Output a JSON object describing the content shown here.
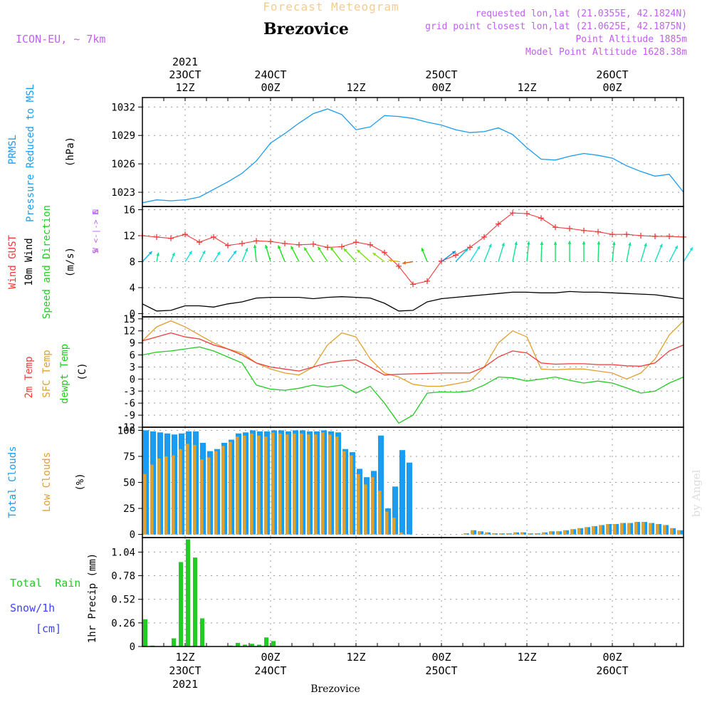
{
  "header": {
    "title": "Brezovice",
    "subtitle": "Forecast Meteogram",
    "model": "ICON-EU, ~ 7km",
    "requested": "requested lon,lat (21.0355E, 42.1824N)",
    "gridpoint": "grid point closest lon,lat (21.0625E, 42.1875N)",
    "altitude": "Point Altitude 1885m",
    "model_altitude": "Model Point Altitude 1628.38m",
    "footer": "Brezovice",
    "watermark": "by Angel"
  },
  "colors": {
    "pressure": "#1a9cf0",
    "gust": "#ee3b3b",
    "wind": "#000000",
    "t2m": "#ee3b3b",
    "sfc": "#e0a030",
    "dewpt": "#22cc22",
    "total_clouds": "#1a9cf0",
    "low_clouds": "#e0a030",
    "rain": "#22cc22",
    "snow": "#4040ff",
    "meta": "#c060f0",
    "grid": "#999999"
  },
  "time_axis": {
    "top_year": "2021",
    "top": [
      {
        "t": 12,
        "l1": "23OCT",
        "l2": "12Z"
      },
      {
        "t": 24,
        "l1": "24OCT",
        "l2": "00Z"
      },
      {
        "t": 36,
        "l1": "",
        "l2": "12Z"
      },
      {
        "t": 48,
        "l1": "25OCT",
        "l2": "00Z"
      },
      {
        "t": 60,
        "l1": "",
        "l2": "12Z"
      },
      {
        "t": 72,
        "l1": "26OCT",
        "l2": "00Z"
      }
    ],
    "bottom": [
      {
        "t": 12,
        "l1": "12Z",
        "l2": "23OCT",
        "l3": "2021"
      },
      {
        "t": 24,
        "l1": "00Z",
        "l2": "24OCT",
        "l3": ""
      },
      {
        "t": 36,
        "l1": "12Z",
        "l2": "",
        "l3": ""
      },
      {
        "t": 48,
        "l1": "00Z",
        "l2": "25OCT",
        "l3": ""
      },
      {
        "t": 60,
        "l1": "12Z",
        "l2": "",
        "l3": ""
      },
      {
        "t": 72,
        "l1": "00Z",
        "l2": "26OCT",
        "l3": ""
      }
    ]
  },
  "panel_labels": {
    "pressure": [
      "PRMSL",
      "Pressure Reduced to MSL"
    ],
    "pressure_unit": "(hPa)",
    "gust": "Wind GUST",
    "wind": "10m Wind",
    "winddir": "Speed and Direction",
    "wind_unit": "(m/s)",
    "compass": [
      "N",
      "^",
      "|",
      "W <-|-> E",
      "|",
      "v",
      "S"
    ],
    "t2m": "2m Temp",
    "sfc": "SFC Temp",
    "dewpt": "dewpt Temp",
    "temp_unit": "(C)",
    "total_clouds": "Total Clouds",
    "low_clouds": "Low Clouds",
    "cloud_unit": "(%)",
    "rain": "Total  Rain",
    "snow": "Snow/1h",
    "snow_unit": "[cm]",
    "precip_unit": "1hr Precip (mm)"
  },
  "chart_data": [
    {
      "type": "line",
      "name": "pressure",
      "x_start_hour": 6,
      "x_end_hour": 82,
      "yticks": [
        1023,
        1026,
        1029,
        1032
      ],
      "ylim": [
        1021.5,
        1033
      ],
      "x": [
        6,
        8,
        10,
        12,
        14,
        16,
        18,
        20,
        22,
        24,
        26,
        28,
        30,
        32,
        34,
        36,
        38,
        40,
        42,
        44,
        46,
        48,
        50,
        52,
        54,
        56,
        58,
        60,
        62,
        64,
        66,
        68,
        70,
        72,
        74,
        76,
        78,
        80,
        82
      ],
      "values": [
        1021.9,
        1022.2,
        1022.1,
        1022.2,
        1022.5,
        1023.3,
        1024.1,
        1025,
        1026.3,
        1028.2,
        1029.2,
        1030.3,
        1031.3,
        1031.8,
        1031.2,
        1029.6,
        1029.9,
        1031.1,
        1031,
        1030.8,
        1030.4,
        1030.1,
        1029.6,
        1029.3,
        1029.4,
        1029.8,
        1029.1,
        1027.7,
        1026.5,
        1026.4,
        1026.8,
        1027.1,
        1026.9,
        1026.6,
        1025.8,
        1025.2,
        1024.7,
        1024.9,
        1023
      ],
      "ylabel": "(hPa)"
    },
    {
      "type": "line",
      "name": "wind",
      "x_start_hour": 6,
      "x_end_hour": 82,
      "yticks": [
        0,
        4,
        8,
        12,
        16
      ],
      "ylim": [
        -0.5,
        16.5
      ],
      "x": [
        6,
        8,
        10,
        12,
        14,
        16,
        18,
        20,
        22,
        24,
        26,
        28,
        30,
        32,
        34,
        36,
        38,
        40,
        42,
        44,
        46,
        48,
        50,
        52,
        54,
        56,
        58,
        60,
        62,
        64,
        66,
        68,
        70,
        72,
        74,
        76,
        78,
        80,
        82
      ],
      "gust": [
        12,
        11.8,
        11.6,
        12.2,
        11,
        11.8,
        10.5,
        10.8,
        11.2,
        11.1,
        10.8,
        10.6,
        10.7,
        10.2,
        10.3,
        11,
        10.6,
        9.4,
        7.3,
        4.5,
        5,
        8.1,
        9,
        10.2,
        11.8,
        13.8,
        15.5,
        15.4,
        14.7,
        13.3,
        13.1,
        12.8,
        12.6,
        12.2,
        12.2,
        12,
        11.9,
        11.9,
        11.8
      ],
      "speed": [
        1.5,
        0.4,
        0.5,
        1.2,
        1.2,
        1,
        1.5,
        1.8,
        2.4,
        2.5,
        2.5,
        2.5,
        2.3,
        2.5,
        2.6,
        2.5,
        2.4,
        1.6,
        0.4,
        0.5,
        1.8,
        2.3,
        2.5,
        2.7,
        2.9,
        3.1,
        3.3,
        3.3,
        3.2,
        3.2,
        3.4,
        3.3,
        3.3,
        3.2,
        3.1,
        3,
        2.9,
        2.6,
        2.3
      ],
      "dir_deg": [
        220,
        190,
        200,
        210,
        205,
        210,
        215,
        200,
        175,
        165,
        160,
        155,
        150,
        150,
        145,
        140,
        135,
        130,
        100,
        80,
        160,
        230,
        220,
        210,
        200,
        195,
        190,
        185,
        182,
        180,
        180,
        180,
        182,
        185,
        190,
        195,
        200,
        205,
        210
      ],
      "ylabel": "(m/s)"
    },
    {
      "type": "line",
      "name": "temperature",
      "x_start_hour": 6,
      "x_end_hour": 82,
      "yticks": [
        -12,
        -9,
        -6,
        -3,
        0,
        3,
        6,
        9,
        12,
        15
      ],
      "ylim": [
        -12,
        15.5
      ],
      "x": [
        6,
        8,
        10,
        12,
        14,
        16,
        18,
        20,
        22,
        24,
        26,
        28,
        30,
        32,
        34,
        36,
        38,
        40,
        42,
        44,
        46,
        48,
        50,
        52,
        54,
        56,
        58,
        60,
        62,
        64,
        66,
        68,
        70,
        72,
        74,
        76,
        78,
        80,
        82
      ],
      "t2m": [
        9.5,
        10.5,
        11.5,
        10.5,
        10,
        8.5,
        7.5,
        6,
        4,
        3,
        2.5,
        2,
        3,
        4,
        4.5,
        4.8,
        3,
        1,
        1.2,
        1.3,
        1.4,
        1.5,
        1.5,
        1.5,
        3,
        5.5,
        7,
        6.5,
        4,
        3.7,
        3.8,
        3.8,
        3.6,
        3.6,
        3.3,
        3.2,
        4,
        7,
        8.5
      ],
      "sfc": [
        9.5,
        13,
        14.5,
        13,
        11,
        9,
        7.5,
        6.5,
        4,
        2.5,
        1.5,
        1,
        3,
        8.5,
        11.5,
        10.5,
        5,
        1.5,
        0.5,
        -1.3,
        -1.8,
        -1.8,
        -1.2,
        -0.5,
        3,
        9,
        12,
        10.5,
        2.5,
        2.3,
        2.5,
        2.5,
        2,
        1.5,
        0,
        1.5,
        5,
        11,
        14.5
      ],
      "dewpt": [
        6,
        6.7,
        7,
        7.5,
        8,
        7,
        5.5,
        4,
        -1.5,
        -2.5,
        -2.8,
        -2.3,
        -1.5,
        -2,
        -1.5,
        -3.5,
        -1.8,
        -6,
        -11,
        -9,
        -3.5,
        -3.2,
        -3.3,
        -3,
        -1.5,
        0.5,
        0.3,
        -0.5,
        0,
        0.5,
        -0.3,
        -1,
        -0.5,
        -1,
        -2.2,
        -3.5,
        -3,
        -1,
        0.5
      ],
      "ylabel": "(C)"
    },
    {
      "type": "bar",
      "name": "clouds",
      "x_start_hour": 6,
      "x_end_hour": 82,
      "yticks": [
        0,
        25,
        50,
        75,
        100
      ],
      "ylim": [
        -3,
        103
      ],
      "x": [
        6,
        7,
        8,
        9,
        10,
        11,
        12,
        13,
        14,
        15,
        16,
        17,
        18,
        19,
        20,
        21,
        22,
        23,
        24,
        25,
        26,
        27,
        28,
        29,
        30,
        31,
        32,
        33,
        34,
        35,
        36,
        37,
        38,
        39,
        40,
        41,
        42,
        43,
        44,
        45,
        46,
        47,
        48,
        49,
        50,
        51,
        52,
        53,
        54,
        55,
        56,
        57,
        58,
        59,
        60,
        61,
        62,
        63,
        64,
        65,
        66,
        67,
        68,
        69,
        70,
        71,
        72,
        73,
        74,
        75,
        76,
        77,
        78,
        79,
        80,
        81
      ],
      "total": [
        100,
        99,
        98,
        97,
        96,
        97,
        99,
        99,
        88,
        80,
        82,
        88,
        91,
        97,
        98,
        100,
        99,
        99,
        100,
        100,
        99,
        100,
        100,
        99,
        99,
        100,
        99,
        98,
        82,
        79,
        63,
        55,
        61,
        95,
        25,
        46,
        81,
        69,
        0,
        0,
        0,
        0,
        0,
        0,
        0,
        1,
        4,
        3,
        2,
        1,
        1,
        1,
        2,
        2,
        1,
        1,
        2,
        3,
        3,
        4,
        5,
        6,
        7,
        8,
        9,
        10,
        10,
        11,
        11,
        12,
        12,
        11,
        10,
        9,
        6,
        4
      ],
      "low": [
        58,
        67,
        73,
        75,
        76,
        82,
        87,
        86,
        72,
        74,
        80,
        85,
        89,
        94,
        95,
        97,
        95,
        94,
        98,
        97,
        96,
        97,
        97,
        96,
        96,
        98,
        96,
        94,
        80,
        76,
        58,
        48,
        55,
        42,
        22,
        16,
        2,
        0,
        0,
        0,
        0,
        0,
        0,
        0,
        0,
        1,
        4,
        3,
        2,
        1,
        1,
        1,
        2,
        2,
        1,
        1,
        2,
        3,
        3,
        4,
        5,
        6,
        7,
        8,
        9,
        10,
        10,
        11,
        11,
        12,
        12,
        11,
        10,
        9,
        6,
        4
      ],
      "ylabel": "(%)"
    },
    {
      "type": "bar",
      "name": "precipitation",
      "x_start_hour": 6,
      "x_end_hour": 82,
      "yticks": [
        0,
        0.26,
        0.52,
        0.78,
        1.04
      ],
      "ylim": [
        0,
        1.2
      ],
      "x": [
        6,
        7,
        8,
        9,
        10,
        11,
        12,
        13,
        14,
        15,
        16,
        17,
        18,
        19,
        20,
        21,
        22,
        23,
        24,
        25,
        26,
        27,
        28,
        29,
        30,
        31,
        32,
        33,
        34,
        35,
        36
      ],
      "values": [
        0.3,
        0.01,
        0,
        0,
        0.09,
        0.93,
        1.18,
        0.98,
        0.31,
        0,
        0,
        0,
        0.01,
        0.04,
        0.02,
        0.03,
        0.02,
        0.1,
        0.06,
        0,
        0,
        0,
        0,
        0,
        0,
        0,
        0,
        0,
        0,
        0,
        0
      ],
      "ylabel": "1hr Precip (mm)"
    }
  ]
}
